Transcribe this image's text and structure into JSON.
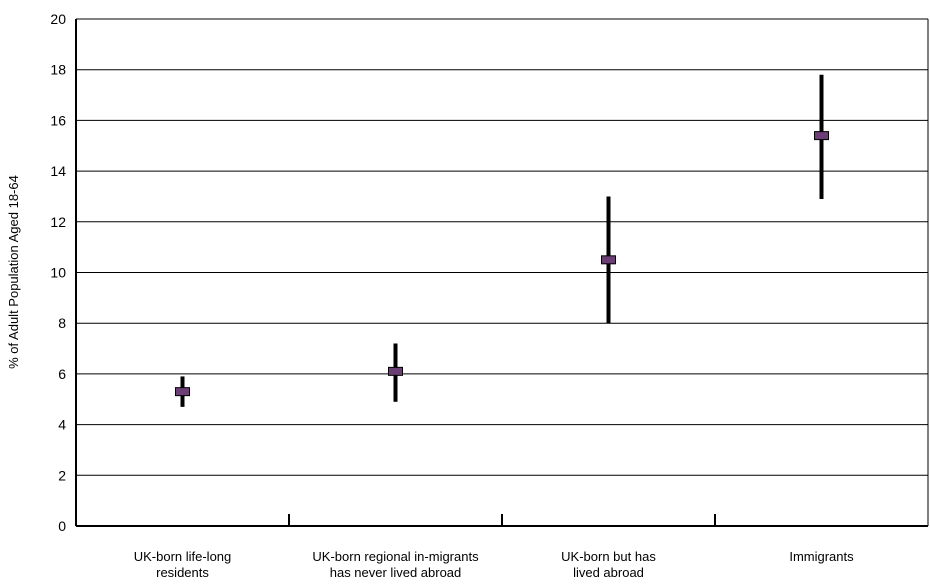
{
  "chart_data": {
    "type": "scatter",
    "ylabel": "% of Adult Population Aged 18-64",
    "xlabel": "",
    "ylim": [
      0,
      20
    ],
    "yticks": [
      "0",
      "2",
      "4",
      "6",
      "8",
      "10",
      "12",
      "14",
      "16",
      "18",
      "20"
    ],
    "grid": true,
    "categories": [
      [
        "UK-born life-long",
        "residents"
      ],
      [
        "UK-born regional in-migrants",
        "has never lived abroad"
      ],
      [
        "UK-born but has",
        "lived abroad"
      ],
      [
        "Immigrants"
      ]
    ],
    "points": [
      {
        "estimate": 5.3,
        "low": 4.7,
        "high": 5.9
      },
      {
        "estimate": 6.1,
        "low": 4.9,
        "high": 7.2
      },
      {
        "estimate": 10.5,
        "low": 8.0,
        "high": 13.0
      },
      {
        "estimate": 15.4,
        "low": 12.9,
        "high": 17.8
      }
    ],
    "marker_color": "#6b3f75",
    "bar_color": "#000000"
  }
}
